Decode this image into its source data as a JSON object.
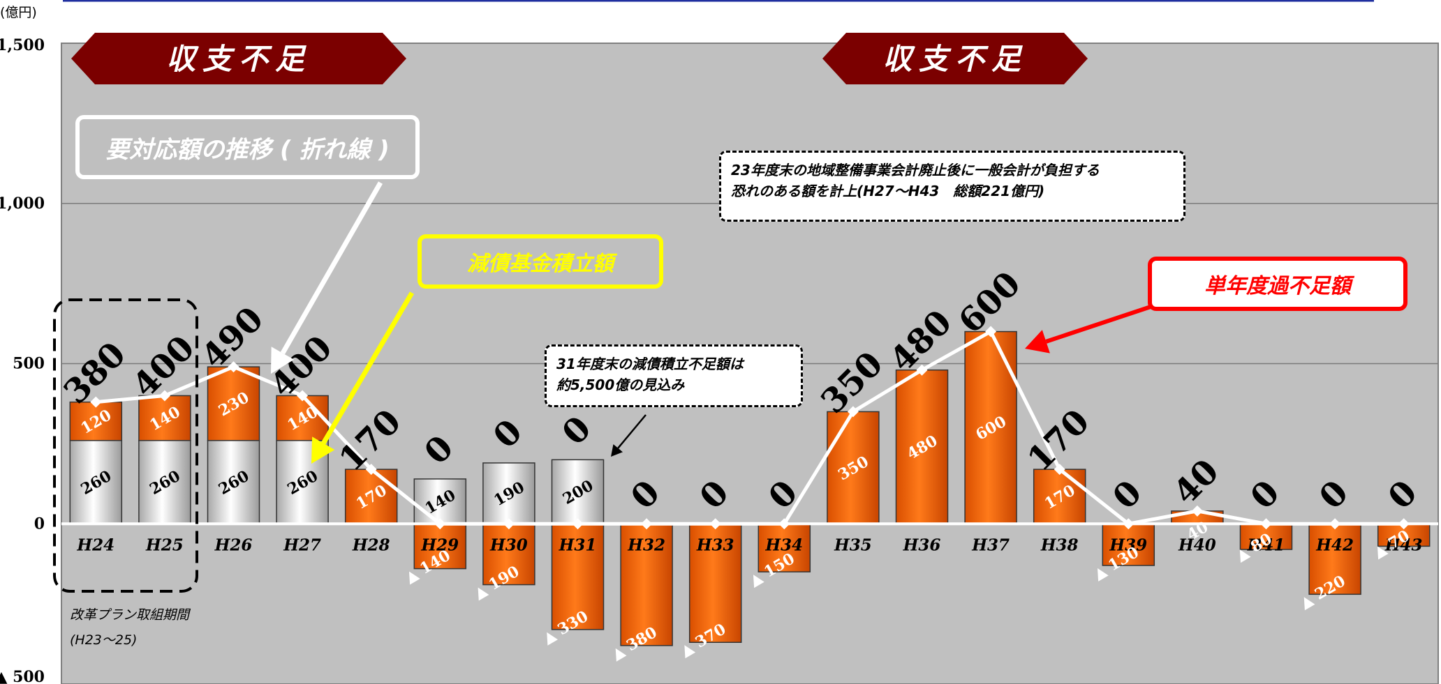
{
  "chart_data": {
    "type": "bar",
    "unit_label": "(億円)",
    "categories": [
      "H24",
      "H25",
      "H26",
      "H27",
      "H28",
      "H29",
      "H30",
      "H31",
      "H32",
      "H33",
      "H34",
      "H35",
      "H36",
      "H37",
      "H38",
      "H39",
      "H40",
      "H41",
      "H42",
      "H43"
    ],
    "ylim": [
      -500,
      1500
    ],
    "yticks": [
      -500,
      0,
      500,
      1000,
      1500
    ],
    "ytick_labels": [
      "▲ 500",
      "0",
      "500",
      "1,000",
      "1,500"
    ],
    "grid": true,
    "series": [
      {
        "name": "減債基金積立額",
        "values": [
          260,
          260,
          260,
          260,
          0,
          140,
          190,
          200,
          0,
          0,
          0,
          0,
          0,
          0,
          0,
          0,
          0,
          0,
          0,
          0
        ]
      },
      {
        "name": "単年度過不足額",
        "values": [
          120,
          140,
          230,
          140,
          170,
          -140,
          -190,
          -330,
          -380,
          -370,
          -150,
          350,
          480,
          600,
          170,
          -130,
          40,
          -80,
          -220,
          -70
        ]
      }
    ],
    "line": {
      "name": "要対応額の推移",
      "values": [
        380,
        400,
        490,
        400,
        170,
        0,
        0,
        0,
        0,
        0,
        0,
        350,
        480,
        600,
        170,
        0,
        40,
        0,
        0,
        0
      ]
    },
    "top_labels": [
      "380",
      "400",
      "490",
      "400",
      "170",
      "0",
      "0",
      "0",
      "0",
      "0",
      "0",
      "350",
      "480",
      "600",
      "170",
      "0",
      "40",
      "0",
      "0",
      "0"
    ],
    "fund_labels": [
      "260",
      "260",
      "260",
      "260",
      "",
      "140",
      "190",
      "200",
      "",
      "",
      "",
      "",
      "",
      "",
      "",
      "",
      "",
      "",
      "",
      ""
    ],
    "balance_labels": [
      "120",
      "140",
      "230",
      "140",
      "170",
      "▲ 140",
      "▲ 190",
      "▲ 330",
      "▲ 380",
      "▲ 370",
      "▲ 150",
      "350",
      "480",
      "600",
      "170",
      "▲ 130",
      "40",
      "▲ 80",
      "▲ 220",
      "▲ 70"
    ],
    "deficit_banners": [
      "収支不足",
      "収支不足"
    ],
    "callouts": {
      "line": "要対応額の推移 ( 折れ線 )",
      "fund": "減債基金積立額",
      "year": "単年度過不足額"
    },
    "notes": {
      "h23": "23年度末の地域整備事業会計廃止後に一般会計が負担する\n恐れのある額を計上(H27～H43　総額221億円)",
      "h31": "31年度末の減債積立不足額は\n約5,500億の見込み",
      "reform": "改革プラン取組期間\n(H23～25)"
    },
    "colors": {
      "plot_bg": "#c0c0c0",
      "bar_orange": "#ff6600",
      "bar_white": "#f0f0f0",
      "line": "#ffffff",
      "banner": "#7b0000",
      "top_rule": "#1f2f9f"
    }
  }
}
